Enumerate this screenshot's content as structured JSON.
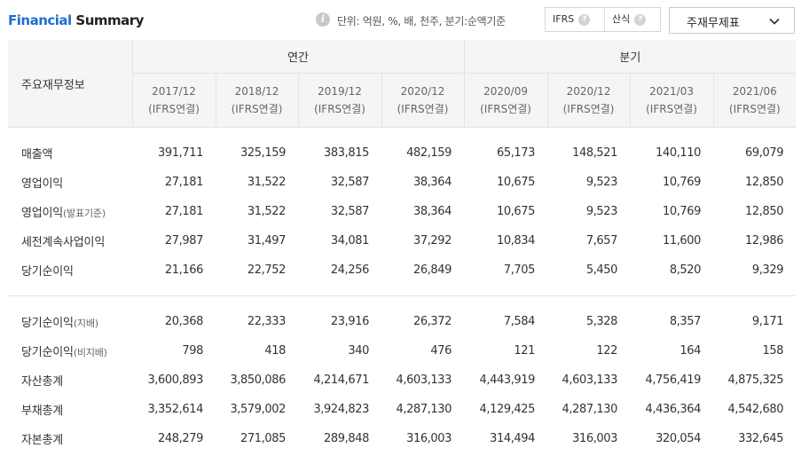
{
  "header": {
    "title_part1": "Financial",
    "title_part2": " Summary",
    "unit_text": "단위: 억원, %, 배, 천주, 분기:순액기준",
    "toggle": {
      "option1": "IFRS",
      "option2": "산식",
      "help_glyph": "?"
    },
    "statement_select": "주재무제표"
  },
  "table": {
    "row_header_label": "주요재무정보",
    "groups": [
      "연간",
      "분기"
    ],
    "periods": [
      {
        "date": "2017/12",
        "basis": "(IFRS연결)"
      },
      {
        "date": "2018/12",
        "basis": "(IFRS연결)"
      },
      {
        "date": "2019/12",
        "basis": "(IFRS연결)"
      },
      {
        "date": "2020/12",
        "basis": "(IFRS연결)"
      },
      {
        "date": "2020/09",
        "basis": "(IFRS연결)"
      },
      {
        "date": "2020/12",
        "basis": "(IFRS연결)"
      },
      {
        "date": "2021/03",
        "basis": "(IFRS연결)"
      },
      {
        "date": "2021/06",
        "basis": "(IFRS연결)"
      }
    ],
    "rows": [
      {
        "label": "매출액",
        "sub": "",
        "values": [
          "391,711",
          "325,159",
          "383,815",
          "482,159",
          "65,173",
          "148,521",
          "140,110",
          "69,079"
        ]
      },
      {
        "label": "영업이익",
        "sub": "",
        "values": [
          "27,181",
          "31,522",
          "32,587",
          "38,364",
          "10,675",
          "9,523",
          "10,769",
          "12,850"
        ]
      },
      {
        "label": "영업이익",
        "sub": "(발표기준)",
        "values": [
          "27,181",
          "31,522",
          "32,587",
          "38,364",
          "10,675",
          "9,523",
          "10,769",
          "12,850"
        ]
      },
      {
        "label": "세전계속사업이익",
        "sub": "",
        "values": [
          "27,987",
          "31,497",
          "34,081",
          "37,292",
          "10,834",
          "7,657",
          "11,600",
          "12,986"
        ]
      },
      {
        "label": "당기순이익",
        "sub": "",
        "values": [
          "21,166",
          "22,752",
          "24,256",
          "26,849",
          "7,705",
          "5,450",
          "8,520",
          "9,329"
        ]
      },
      {
        "label": "당기순이익",
        "sub": "(지배)",
        "values": [
          "20,368",
          "22,333",
          "23,916",
          "26,372",
          "7,584",
          "5,328",
          "8,357",
          "9,171"
        ]
      },
      {
        "label": "당기순이익",
        "sub": "(비지배)",
        "values": [
          "798",
          "418",
          "340",
          "476",
          "121",
          "122",
          "164",
          "158"
        ]
      },
      {
        "label": "자산총계",
        "sub": "",
        "values": [
          "3,600,893",
          "3,850,086",
          "4,214,671",
          "4,603,133",
          "4,443,919",
          "4,603,133",
          "4,756,419",
          "4,875,325"
        ]
      },
      {
        "label": "부채총계",
        "sub": "",
        "values": [
          "3,352,614",
          "3,579,002",
          "3,924,823",
          "4,287,130",
          "4,129,425",
          "4,287,130",
          "4,436,364",
          "4,542,680"
        ]
      },
      {
        "label": "자본총계",
        "sub": "",
        "values": [
          "248,279",
          "271,085",
          "289,848",
          "316,003",
          "314,494",
          "316,003",
          "320,054",
          "332,645"
        ]
      }
    ]
  }
}
